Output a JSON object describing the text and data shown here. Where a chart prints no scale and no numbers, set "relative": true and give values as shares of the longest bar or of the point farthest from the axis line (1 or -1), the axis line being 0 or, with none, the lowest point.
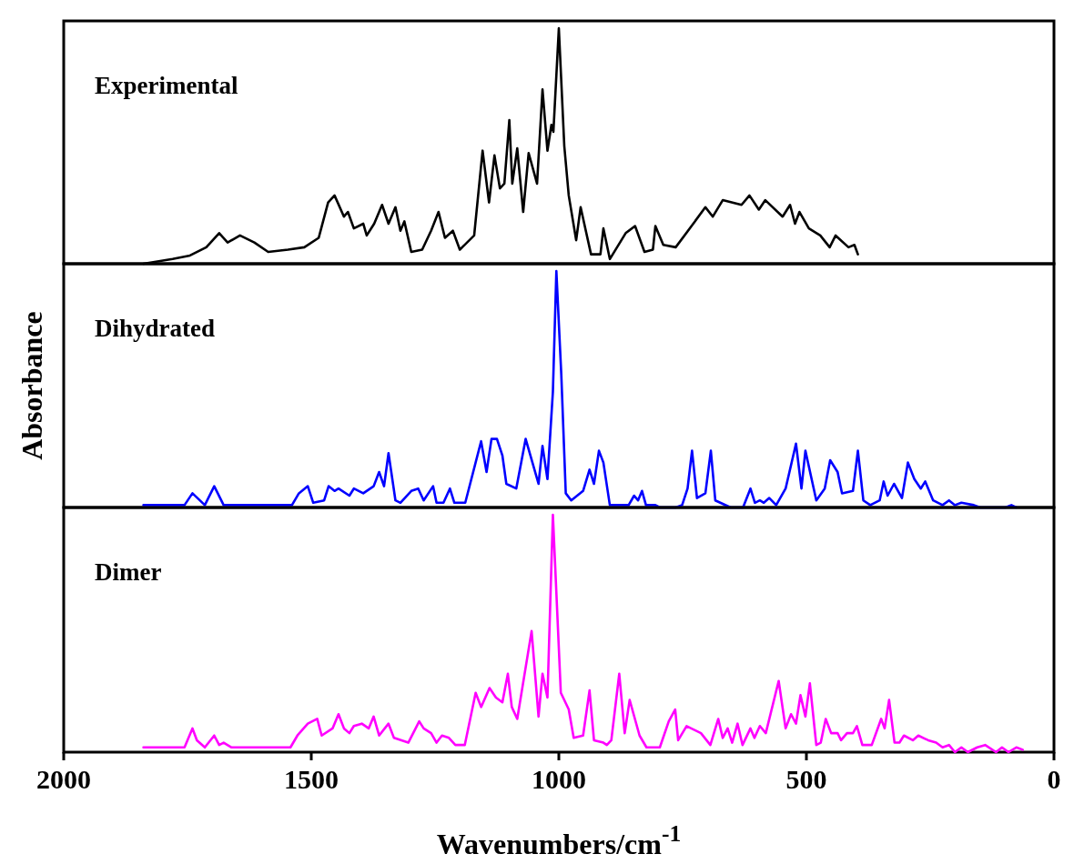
{
  "chart_data": [
    {
      "type": "line",
      "relative": true,
      "xlim": [
        2000,
        0
      ],
      "tick_labels": false,
      "series": [
        {
          "name": "Experimental",
          "color": "#000000",
          "x": [
            1839,
            1780,
            1745,
            1712,
            1686,
            1669,
            1644,
            1615,
            1587,
            1547,
            1514,
            1485,
            1466,
            1453,
            1434,
            1426,
            1414,
            1395,
            1388,
            1373,
            1357,
            1344,
            1330,
            1320,
            1312,
            1298,
            1276,
            1258,
            1243,
            1230,
            1214,
            1200,
            1171,
            1154,
            1141,
            1130,
            1119,
            1110,
            1100,
            1094,
            1084,
            1072,
            1061,
            1044,
            1033,
            1023,
            1015,
            1011,
            1000,
            989,
            980,
            965,
            956,
            935,
            916,
            910,
            897,
            865,
            846,
            827,
            810,
            805,
            789,
            764,
            732,
            704,
            689,
            669,
            631,
            615,
            596,
            583,
            548,
            533,
            523,
            514,
            495,
            472,
            453,
            441,
            415,
            403,
            396
          ],
          "values": [
            0,
            0.02,
            0.035,
            0.07,
            0.13,
            0.09,
            0.12,
            0.09,
            0.05,
            0.06,
            0.07,
            0.11,
            0.26,
            0.29,
            0.2,
            0.22,
            0.15,
            0.17,
            0.12,
            0.17,
            0.25,
            0.17,
            0.24,
            0.14,
            0.18,
            0.05,
            0.06,
            0.14,
            0.22,
            0.11,
            0.14,
            0.06,
            0.12,
            0.48,
            0.26,
            0.46,
            0.32,
            0.34,
            0.61,
            0.34,
            0.49,
            0.22,
            0.47,
            0.34,
            0.74,
            0.48,
            0.59,
            0.56,
            1.0,
            0.5,
            0.29,
            0.1,
            0.24,
            0.04,
            0.04,
            0.15,
            0.02,
            0.13,
            0.16,
            0.05,
            0.06,
            0.16,
            0.08,
            0.07,
            0.16,
            0.24,
            0.2,
            0.27,
            0.25,
            0.29,
            0.23,
            0.27,
            0.2,
            0.25,
            0.17,
            0.22,
            0.15,
            0.12,
            0.07,
            0.12,
            0.07,
            0.08,
            0.04
          ]
        }
      ]
    },
    {
      "type": "line",
      "relative": true,
      "xlim": [
        2000,
        0
      ],
      "tick_labels": false,
      "ylabel": "Absorbance",
      "series": [
        {
          "name": "Dihydrated",
          "color": "#0000ff",
          "x": [
            1839,
            1756,
            1740,
            1715,
            1696,
            1677,
            1539,
            1525,
            1507,
            1496,
            1474,
            1465,
            1453,
            1445,
            1423,
            1414,
            1395,
            1374,
            1363,
            1353,
            1344,
            1330,
            1320,
            1298,
            1284,
            1273,
            1254,
            1247,
            1233,
            1220,
            1211,
            1189,
            1157,
            1146,
            1136,
            1125,
            1114,
            1106,
            1086,
            1067,
            1041,
            1033,
            1023,
            1012,
            1005,
            995,
            986,
            975,
            951,
            938,
            929,
            919,
            910,
            897,
            859,
            848,
            840,
            832,
            824,
            805,
            796,
            764,
            751,
            740,
            731,
            721,
            704,
            693,
            684,
            653,
            628,
            613,
            604,
            594,
            586,
            575,
            561,
            542,
            521,
            510,
            502,
            480,
            463,
            452,
            437,
            428,
            406,
            396,
            385,
            371,
            352,
            344,
            336,
            323,
            307,
            295,
            282,
            269,
            260,
            244,
            225,
            212,
            200,
            187,
            162,
            149,
            98,
            86,
            76
          ],
          "values": [
            0.01,
            0.01,
            0.06,
            0.01,
            0.09,
            0.01,
            0.01,
            0.06,
            0.09,
            0.02,
            0.03,
            0.09,
            0.07,
            0.08,
            0.05,
            0.08,
            0.06,
            0.09,
            0.15,
            0.09,
            0.23,
            0.03,
            0.02,
            0.07,
            0.08,
            0.03,
            0.09,
            0.02,
            0.02,
            0.08,
            0.02,
            0.02,
            0.28,
            0.15,
            0.29,
            0.29,
            0.22,
            0.1,
            0.08,
            0.29,
            0.1,
            0.26,
            0.12,
            0.49,
            1.0,
            0.56,
            0.06,
            0.03,
            0.07,
            0.16,
            0.1,
            0.24,
            0.19,
            0.01,
            0.01,
            0.05,
            0.03,
            0.07,
            0.01,
            0.01,
            0,
            0,
            0.01,
            0.08,
            0.24,
            0.04,
            0.06,
            0.24,
            0.03,
            0,
            0,
            0.08,
            0.02,
            0.03,
            0.02,
            0.04,
            0.01,
            0.08,
            0.27,
            0.08,
            0.24,
            0.03,
            0.08,
            0.2,
            0.15,
            0.06,
            0.07,
            0.24,
            0.03,
            0.01,
            0.03,
            0.11,
            0.05,
            0.1,
            0.04,
            0.19,
            0.12,
            0.08,
            0.11,
            0.03,
            0.01,
            0.03,
            0.01,
            0.02,
            0.01,
            0,
            0,
            0.01,
            0
          ]
        }
      ]
    },
    {
      "type": "line",
      "relative": true,
      "xlim": [
        2000,
        0
      ],
      "xticks": [
        2000,
        1500,
        1000,
        500,
        0
      ],
      "tick_labels": "x",
      "xlabel": "Wavenumbers/cm$^{-1}$",
      "series": [
        {
          "name": "Dimer",
          "color": "#ff00ff",
          "x": [
            1839,
            1756,
            1740,
            1731,
            1715,
            1696,
            1686,
            1677,
            1661,
            1542,
            1528,
            1507,
            1488,
            1479,
            1457,
            1445,
            1434,
            1423,
            1414,
            1398,
            1384,
            1374,
            1363,
            1344,
            1333,
            1304,
            1282,
            1273,
            1258,
            1247,
            1236,
            1222,
            1209,
            1190,
            1168,
            1157,
            1140,
            1127,
            1114,
            1103,
            1095,
            1084,
            1055,
            1041,
            1033,
            1023,
            1012,
            996,
            980,
            970,
            951,
            938,
            929,
            910,
            903,
            894,
            878,
            867,
            857,
            837,
            823,
            796,
            778,
            765,
            759,
            742,
            713,
            694,
            678,
            669,
            659,
            650,
            639,
            629,
            613,
            605,
            594,
            582,
            556,
            542,
            531,
            521,
            512,
            502,
            493,
            480,
            471,
            461,
            450,
            437,
            430,
            418,
            406,
            398,
            387,
            368,
            349,
            342,
            333,
            322,
            312,
            303,
            285,
            274,
            254,
            238,
            225,
            212,
            200,
            187,
            174,
            155,
            139,
            117,
            105,
            92,
            76,
            63
          ],
          "values": [
            0.02,
            0.02,
            0.1,
            0.05,
            0.02,
            0.07,
            0.03,
            0.04,
            0.02,
            0.02,
            0.07,
            0.12,
            0.14,
            0.07,
            0.1,
            0.16,
            0.1,
            0.08,
            0.11,
            0.12,
            0.1,
            0.15,
            0.07,
            0.12,
            0.06,
            0.04,
            0.13,
            0.1,
            0.08,
            0.04,
            0.07,
            0.06,
            0.03,
            0.03,
            0.25,
            0.19,
            0.27,
            0.23,
            0.21,
            0.33,
            0.19,
            0.14,
            0.51,
            0.15,
            0.33,
            0.23,
            1.0,
            0.25,
            0.18,
            0.06,
            0.07,
            0.26,
            0.05,
            0.04,
            0.03,
            0.05,
            0.33,
            0.08,
            0.22,
            0.07,
            0.02,
            0.02,
            0.13,
            0.18,
            0.05,
            0.11,
            0.08,
            0.03,
            0.14,
            0.06,
            0.1,
            0.04,
            0.12,
            0.03,
            0.1,
            0.06,
            0.11,
            0.08,
            0.3,
            0.1,
            0.16,
            0.12,
            0.24,
            0.15,
            0.29,
            0.03,
            0.04,
            0.14,
            0.08,
            0.08,
            0.05,
            0.08,
            0.08,
            0.11,
            0.03,
            0.03,
            0.14,
            0.1,
            0.22,
            0.04,
            0.04,
            0.07,
            0.05,
            0.07,
            0.05,
            0.04,
            0.02,
            0.03,
            0,
            0.02,
            0,
            0.02,
            0.03,
            0,
            0.02,
            0,
            0.02,
            0.01
          ]
        }
      ]
    }
  ]
}
